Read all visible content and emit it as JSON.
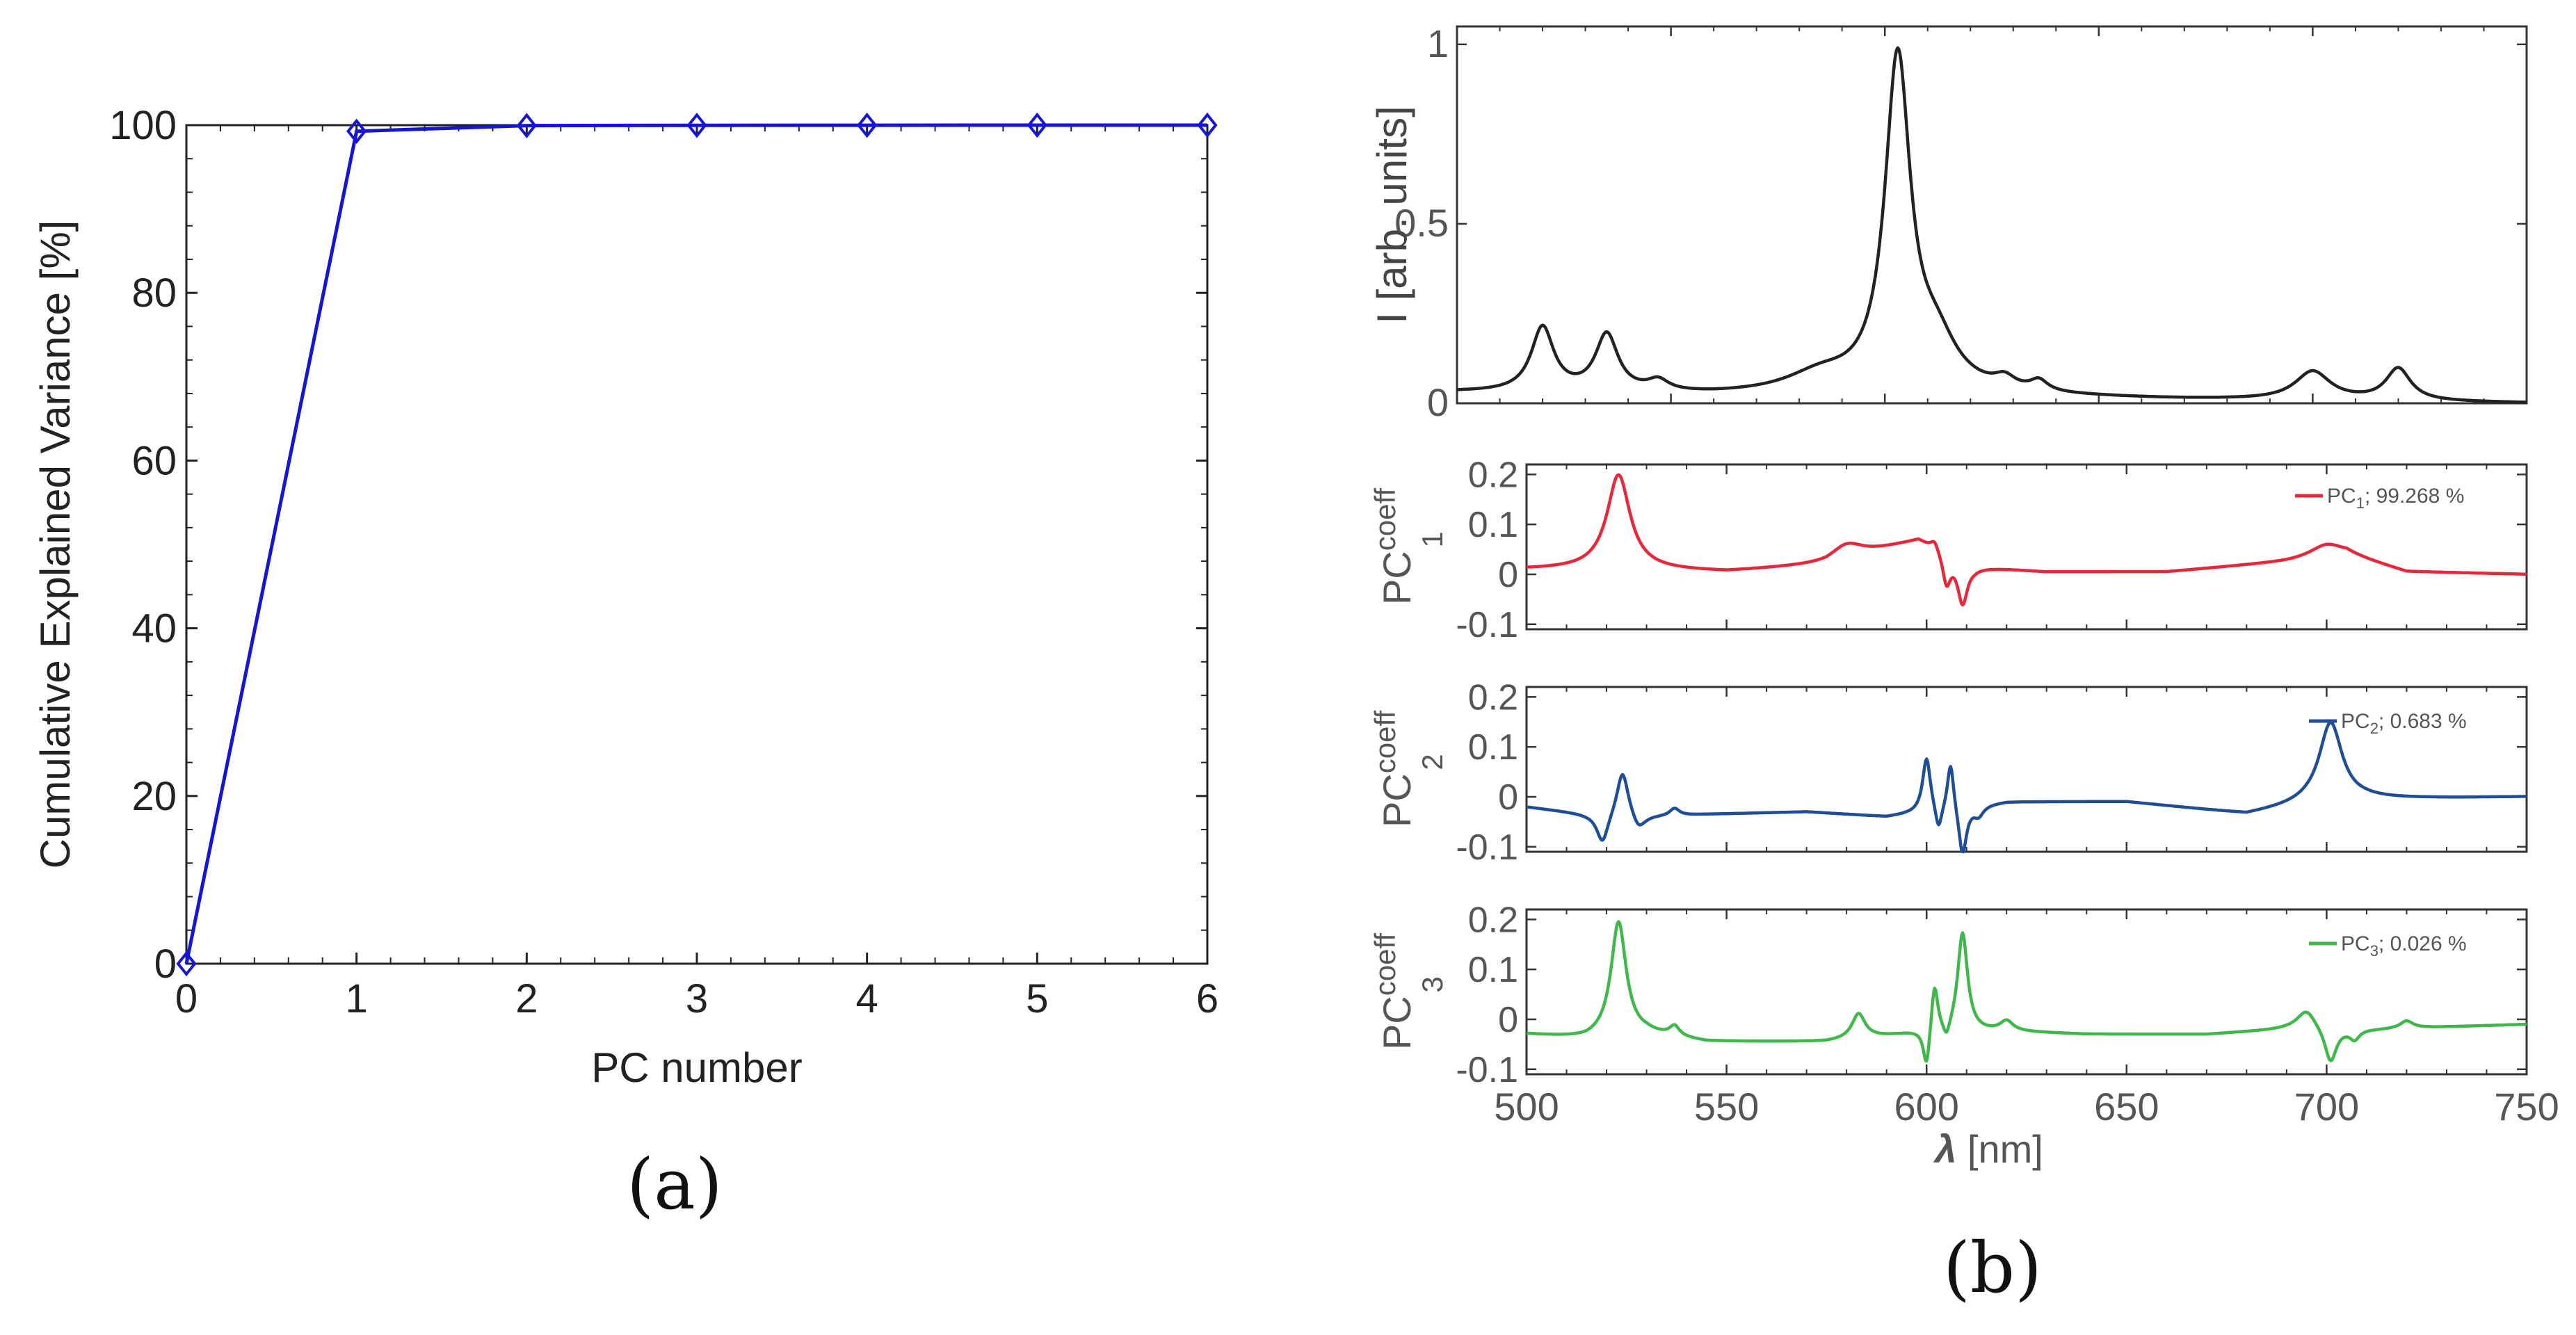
{
  "figure_labels": {
    "a": "(a)",
    "b": "(b)"
  },
  "chart_data": [
    {
      "id": "a",
      "type": "line",
      "title": "",
      "xlabel": "PC number",
      "ylabel": "Cumulative Explained Variance [%]",
      "xlim": [
        0,
        6
      ],
      "ylim": [
        0,
        100
      ],
      "xticks": [
        0,
        1,
        2,
        3,
        4,
        5,
        6
      ],
      "yticks": [
        0,
        20,
        40,
        60,
        80,
        100
      ],
      "grid": false,
      "marker": "diamond",
      "color": "#1515d8",
      "series": [
        {
          "name": "Cumulative explained variance",
          "x": [
            0,
            1,
            2,
            3,
            4,
            5,
            6
          ],
          "y": [
            0,
            99.27,
            99.95,
            99.98,
            99.99,
            100,
            100
          ]
        }
      ]
    },
    {
      "id": "b-spectrum",
      "type": "line",
      "xlabel": "",
      "ylabel": "I [arb. units]",
      "xlim": [
        500,
        750
      ],
      "ylim": [
        0,
        1.05
      ],
      "yticks": [
        0,
        0.5,
        1
      ],
      "color": "#222222",
      "peaks": [
        {
          "center": 520,
          "amp": 0.18,
          "width": 3.2
        },
        {
          "center": 535,
          "amp": 0.16,
          "width": 3.2
        },
        {
          "center": 547,
          "amp": 0.03,
          "width": 3
        },
        {
          "center": 585,
          "amp": 0.05,
          "width": 10
        },
        {
          "center": 603,
          "amp": 0.92,
          "width": 3.6
        },
        {
          "center": 612,
          "amp": 0.12,
          "width": 6
        },
        {
          "center": 628,
          "amp": 0.03,
          "width": 3
        },
        {
          "center": 636,
          "amp": 0.03,
          "width": 2.5
        },
        {
          "center": 700,
          "amp": 0.08,
          "width": 5
        },
        {
          "center": 720,
          "amp": 0.09,
          "width": 3.5
        }
      ],
      "baseline": [
        [
          500,
          0.03
        ],
        [
          560,
          0.02
        ],
        [
          620,
          0.02
        ],
        [
          665,
          0.01
        ],
        [
          750,
          0.0
        ]
      ]
    },
    {
      "id": "b-pc1",
      "type": "line",
      "ylabel": "PC",
      "ylabel_sup": "coeff",
      "ylabel_sub": "1",
      "xlim": [
        500,
        750
      ],
      "ylim": [
        -0.11,
        0.22
      ],
      "yticks": [
        -0.1,
        0,
        0.1,
        0.2
      ],
      "color": "#e8283a",
      "legend": {
        "name": "PC",
        "sub": "1",
        "suffix": "; 99.268 %",
        "position": "top-right"
      },
      "peaks": [
        {
          "center": 523,
          "amp": 0.19,
          "width": 3.5
        },
        {
          "center": 580,
          "amp": 0.03,
          "width": 5
        },
        {
          "center": 602,
          "amp": 0.02,
          "width": 1.2
        },
        {
          "center": 609,
          "amp": -0.085,
          "width": 1.5
        },
        {
          "center": 605,
          "amp": -0.06,
          "width": 1.2
        },
        {
          "center": 700,
          "amp": 0.025,
          "width": 5
        }
      ],
      "baseline": [
        [
          500,
          0.01
        ],
        [
          517,
          0.01
        ],
        [
          550,
          0.005
        ],
        [
          575,
          0.02
        ],
        [
          598,
          0.07
        ],
        [
          612,
          0.015
        ],
        [
          630,
          0.005
        ],
        [
          660,
          0.005
        ],
        [
          690,
          0.025
        ],
        [
          705,
          0.04
        ],
        [
          720,
          0.005
        ],
        [
          750,
          0.0
        ]
      ]
    },
    {
      "id": "b-pc2",
      "type": "line",
      "ylabel": "PC",
      "ylabel_sup": "coeff",
      "ylabel_sub": "2",
      "xlim": [
        500,
        750
      ],
      "ylim": [
        -0.11,
        0.22
      ],
      "yticks": [
        -0.1,
        0,
        0.1,
        0.2
      ],
      "color": "#1f4e97",
      "legend": {
        "name": "PC",
        "sub": "2",
        "suffix": "; 0.683 %",
        "position": "top-right"
      },
      "peaks": [
        {
          "center": 519,
          "amp": -0.06,
          "width": 1.8
        },
        {
          "center": 524,
          "amp": 0.095,
          "width": 1.8
        },
        {
          "center": 528,
          "amp": -0.03,
          "width": 2
        },
        {
          "center": 537,
          "amp": 0.015,
          "width": 1.5
        },
        {
          "center": 600,
          "amp": 0.11,
          "width": 1.2
        },
        {
          "center": 603,
          "amp": -0.05,
          "width": 1
        },
        {
          "center": 606,
          "amp": 0.1,
          "width": 1
        },
        {
          "center": 609,
          "amp": -0.1,
          "width": 1.2
        },
        {
          "center": 613,
          "amp": -0.02,
          "width": 1.5
        },
        {
          "center": 701,
          "amp": 0.16,
          "width": 3.5
        }
      ],
      "baseline": [
        [
          500,
          -0.02
        ],
        [
          515,
          -0.035
        ],
        [
          530,
          -0.04
        ],
        [
          545,
          -0.035
        ],
        [
          570,
          -0.03
        ],
        [
          590,
          -0.04
        ],
        [
          620,
          -0.01
        ],
        [
          650,
          -0.01
        ],
        [
          680,
          -0.035
        ],
        [
          695,
          -0.015
        ],
        [
          710,
          -0.005
        ],
        [
          750,
          0.0
        ]
      ]
    },
    {
      "id": "b-pc3",
      "type": "line",
      "ylabel": "PC",
      "ylabel_sup": "coeff",
      "ylabel_sub": "3",
      "xlim": [
        500,
        750
      ],
      "ylim": [
        -0.11,
        0.22
      ],
      "yticks": [
        -0.1,
        0,
        0.1,
        0.2
      ],
      "xticks": [
        500,
        550,
        600,
        650,
        700,
        750
      ],
      "xlabel_symbol": "λ",
      "xlabel": " [nm]",
      "color": "#3fb84a",
      "legend": {
        "name": "PC",
        "sub": "3",
        "suffix": "; 0.026 %",
        "position": "top-right"
      },
      "peaks": [
        {
          "center": 523,
          "amp": 0.23,
          "width": 2.3
        },
        {
          "center": 537,
          "amp": 0.02,
          "width": 1.5
        },
        {
          "center": 583,
          "amp": 0.05,
          "width": 2
        },
        {
          "center": 600,
          "amp": -0.08,
          "width": 1
        },
        {
          "center": 602,
          "amp": 0.1,
          "width": 1
        },
        {
          "center": 605,
          "amp": -0.03,
          "width": 1
        },
        {
          "center": 609,
          "amp": 0.2,
          "width": 1.5
        },
        {
          "center": 620,
          "amp": 0.02,
          "width": 2
        },
        {
          "center": 695,
          "amp": 0.04,
          "width": 3
        },
        {
          "center": 701,
          "amp": -0.07,
          "width": 1.8
        },
        {
          "center": 707,
          "amp": -0.02,
          "width": 1.5
        },
        {
          "center": 720,
          "amp": 0.015,
          "width": 2
        }
      ],
      "baseline": [
        [
          500,
          -0.03
        ],
        [
          515,
          -0.04
        ],
        [
          530,
          -0.03
        ],
        [
          545,
          -0.045
        ],
        [
          575,
          -0.045
        ],
        [
          595,
          -0.03
        ],
        [
          620,
          -0.025
        ],
        [
          640,
          -0.03
        ],
        [
          670,
          -0.03
        ],
        [
          690,
          -0.02
        ],
        [
          712,
          -0.02
        ],
        [
          730,
          -0.015
        ],
        [
          750,
          -0.01
        ]
      ]
    }
  ]
}
